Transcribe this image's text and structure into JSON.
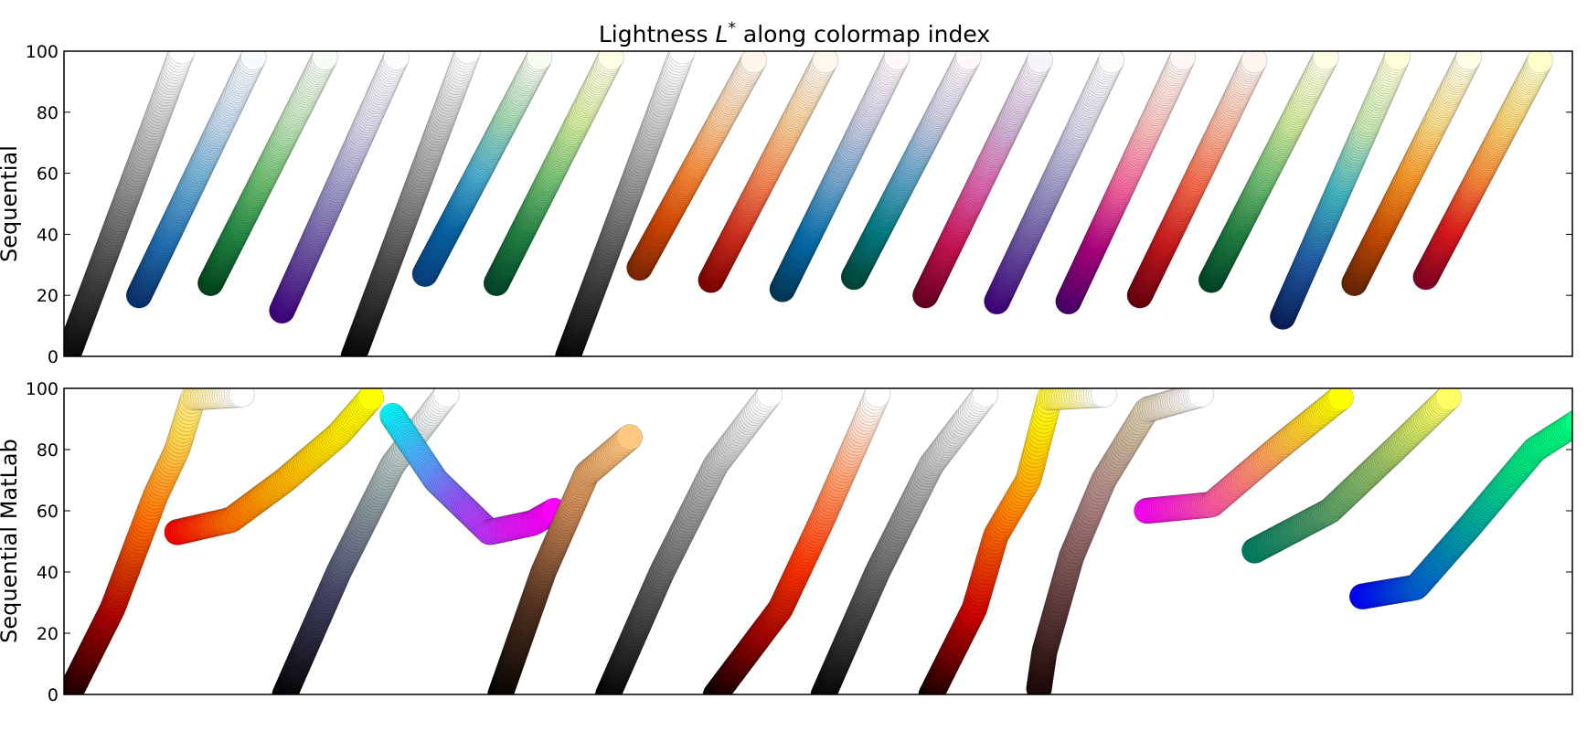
{
  "figure": {
    "title_prefix": "Lightness ",
    "title_symbol": "L",
    "title_sup": "*",
    "title_suffix": " along colormap index"
  },
  "chart_data": [
    {
      "type": "scatter",
      "ylabel": "Sequential",
      "ylim": [
        0,
        100
      ],
      "yticks": [
        "0",
        "20",
        "40",
        "60",
        "80",
        "100"
      ],
      "xticks_visible": false,
      "grid": false,
      "series": [
        {
          "x_start": 0.0,
          "x_end": 1.6,
          "L_start": 0,
          "L_end": 100,
          "curve": 1.0,
          "colors": [
            "#000000",
            "#4d4d4d",
            "#aaaaaa",
            "#ffffff"
          ]
        },
        {
          "x_start": 1.0,
          "x_end": 2.6,
          "L_start": 20,
          "L_end": 98,
          "curve": 1.0,
          "colors": [
            "#08306b",
            "#2171b5",
            "#6baed6",
            "#c6dbef",
            "#f7fbff"
          ]
        },
        {
          "x_start": 2.0,
          "x_end": 3.6,
          "L_start": 24,
          "L_end": 98,
          "curve": 1.0,
          "colors": [
            "#00441b",
            "#238b45",
            "#74c476",
            "#c7e9c0",
            "#f7fcf5"
          ]
        },
        {
          "x_start": 3.0,
          "x_end": 4.6,
          "L_start": 15,
          "L_end": 98,
          "curve": 1.0,
          "colors": [
            "#3f007d",
            "#6a51a3",
            "#9e9ac8",
            "#dadaeb",
            "#fcfbfd"
          ]
        },
        {
          "x_start": 4.0,
          "x_end": 5.6,
          "L_start": 0,
          "L_end": 100,
          "curve": 1.0,
          "colors": [
            "#000000",
            "#4d4d4d",
            "#aaaaaa",
            "#ffffff"
          ]
        },
        {
          "x_start": 5.0,
          "x_end": 6.6,
          "L_start": 27,
          "L_end": 98,
          "curve": 1.0,
          "colors": [
            "#084081",
            "#0868ac",
            "#4eb3d3",
            "#a8ddb5",
            "#f7fcf0"
          ]
        },
        {
          "x_start": 6.0,
          "x_end": 7.6,
          "L_start": 24,
          "L_end": 98,
          "curve": 1.0,
          "colors": [
            "#004529",
            "#238443",
            "#78c679",
            "#d9f0a3",
            "#ffffe5"
          ]
        },
        {
          "x_start": 7.0,
          "x_end": 8.6,
          "L_start": 0,
          "L_end": 100,
          "curve": 1.0,
          "colors": [
            "#000000",
            "#4d4d4d",
            "#aaaaaa",
            "#ffffff"
          ]
        },
        {
          "x_start": 8.0,
          "x_end": 9.6,
          "L_start": 29,
          "L_end": 97,
          "curve": 1.0,
          "colors": [
            "#7f2704",
            "#d94801",
            "#fd8d3c",
            "#fdd0a2",
            "#fff5eb"
          ]
        },
        {
          "x_start": 9.0,
          "x_end": 10.6,
          "L_start": 25,
          "L_end": 97,
          "curve": 1.0,
          "colors": [
            "#7f0000",
            "#d7301f",
            "#fc8d59",
            "#fdd49e",
            "#fff7ec"
          ]
        },
        {
          "x_start": 10.0,
          "x_end": 11.6,
          "L_start": 22,
          "L_end": 98,
          "curve": 1.0,
          "colors": [
            "#023858",
            "#0570b0",
            "#74a9cf",
            "#d0d1e6",
            "#fff7fb"
          ]
        },
        {
          "x_start": 11.0,
          "x_end": 12.6,
          "L_start": 26,
          "L_end": 98,
          "curve": 1.0,
          "colors": [
            "#014636",
            "#02818a",
            "#67a9cf",
            "#d0d1e6",
            "#fff7fb"
          ]
        },
        {
          "x_start": 12.0,
          "x_end": 13.6,
          "L_start": 20,
          "L_end": 97,
          "curve": 1.0,
          "colors": [
            "#67001f",
            "#ce1256",
            "#df65b0",
            "#d4b9da",
            "#f7f4f9"
          ]
        },
        {
          "x_start": 13.0,
          "x_end": 14.6,
          "L_start": 18,
          "L_end": 97,
          "curve": 1.0,
          "colors": [
            "#3f007d",
            "#6a51a3",
            "#9e9ac8",
            "#dadaeb",
            "#fcfbfd"
          ]
        },
        {
          "x_start": 14.0,
          "x_end": 15.6,
          "L_start": 18,
          "L_end": 98,
          "curve": 1.0,
          "colors": [
            "#49006a",
            "#ae017e",
            "#f768a1",
            "#fcc5c0",
            "#fff7f3"
          ]
        },
        {
          "x_start": 15.0,
          "x_end": 16.6,
          "L_start": 20,
          "L_end": 97,
          "curve": 1.0,
          "colors": [
            "#67000d",
            "#cb181d",
            "#fb6a4a",
            "#fcbba1",
            "#fff5f0"
          ]
        },
        {
          "x_start": 16.0,
          "x_end": 17.6,
          "L_start": 25,
          "L_end": 98,
          "curve": 1.0,
          "colors": [
            "#004529",
            "#238443",
            "#78c679",
            "#d9f0a3",
            "#ffffe5"
          ]
        },
        {
          "x_start": 17.0,
          "x_end": 18.6,
          "L_start": 13,
          "L_end": 98,
          "curve": 1.0,
          "colors": [
            "#081d58",
            "#225ea8",
            "#41b6c4",
            "#c7e9b4",
            "#ffffd9"
          ]
        },
        {
          "x_start": 18.0,
          "x_end": 19.6,
          "L_start": 24,
          "L_end": 98,
          "curve": 1.0,
          "colors": [
            "#662506",
            "#cc4c02",
            "#fe9929",
            "#fee391",
            "#ffffe5"
          ]
        },
        {
          "x_start": 19.0,
          "x_end": 20.6,
          "L_start": 26,
          "L_end": 97,
          "curve": 1.0,
          "colors": [
            "#800026",
            "#e31a1c",
            "#fd8d3c",
            "#fed976",
            "#ffffcc"
          ]
        }
      ]
    },
    {
      "type": "scatter",
      "ylabel": "Sequential MatLab",
      "ylim": [
        0,
        100
      ],
      "yticks": [
        "0",
        "20",
        "40",
        "60",
        "80",
        "100"
      ],
      "xticks_visible": false,
      "grid": false,
      "series": [
        {
          "points": [
            [
              0.0,
              0
            ],
            [
              0.4,
              28
            ],
            [
              0.8,
              65
            ],
            [
              1.0,
              80
            ],
            [
              1.15,
              97
            ],
            [
              1.6,
              98
            ]
          ],
          "colors": [
            "#0b0000",
            "#aa0000",
            "#ff6a00",
            "#ffdd55",
            "#ffffff"
          ]
        },
        {
          "points": [
            [
              1.0,
              53
            ],
            [
              1.5,
              57
            ],
            [
              2.0,
              70
            ],
            [
              2.5,
              85
            ],
            [
              2.8,
              97
            ]
          ],
          "colors": [
            "#ff0000",
            "#ff6600",
            "#ffaa00",
            "#ffdd00",
            "#ffff00"
          ]
        },
        {
          "points": [
            [
              2.0,
              0
            ],
            [
              2.5,
              40
            ],
            [
              3.0,
              75
            ],
            [
              3.5,
              98
            ]
          ],
          "colors": [
            "#000000",
            "#444466",
            "#99aaaa",
            "#ffffff"
          ]
        },
        {
          "points": [
            [
              3.0,
              91
            ],
            [
              3.4,
              70
            ],
            [
              3.9,
              53
            ],
            [
              4.3,
              56
            ],
            [
              4.5,
              60
            ]
          ],
          "colors": [
            "#00ffff",
            "#55aaff",
            "#9955ff",
            "#dd22ff",
            "#ff00ff"
          ]
        },
        {
          "points": [
            [
              4.0,
              0
            ],
            [
              4.4,
              40
            ],
            [
              4.8,
              72
            ],
            [
              5.2,
              84
            ]
          ],
          "colors": [
            "#000000",
            "#553322",
            "#cc8855",
            "#ffc77f"
          ]
        },
        {
          "points": [
            [
              5.0,
              0
            ],
            [
              5.5,
              40
            ],
            [
              6.0,
              75
            ],
            [
              6.5,
              98
            ]
          ],
          "colors": [
            "#000000",
            "#555555",
            "#aaaaaa",
            "#ffffff"
          ]
        },
        {
          "points": [
            [
              6.0,
              0
            ],
            [
              6.6,
              28
            ],
            [
              7.0,
              58
            ],
            [
              7.5,
              98
            ]
          ],
          "colors": [
            "#000000",
            "#990000",
            "#ff3300",
            "#ff9966",
            "#ffffff"
          ]
        },
        {
          "points": [
            [
              7.0,
              0
            ],
            [
              7.5,
              40
            ],
            [
              8.0,
              75
            ],
            [
              8.5,
              98
            ]
          ],
          "colors": [
            "#000000",
            "#555555",
            "#aaaaaa",
            "#ffffff"
          ]
        },
        {
          "points": [
            [
              8.0,
              0
            ],
            [
              8.4,
              28
            ],
            [
              8.6,
              52
            ],
            [
              8.9,
              70
            ],
            [
              9.1,
              97
            ],
            [
              9.6,
              98
            ]
          ],
          "colors": [
            "#0b0000",
            "#cc0000",
            "#ff7700",
            "#ffee00",
            "#ffffff"
          ]
        },
        {
          "points": [
            [
              9.0,
              2
            ],
            [
              9.05,
              14
            ],
            [
              9.3,
              45
            ],
            [
              9.6,
              70
            ],
            [
              10.0,
              93
            ],
            [
              10.5,
              98
            ]
          ],
          "colors": [
            "#1a0505",
            "#664040",
            "#aa8080",
            "#d0c0a0",
            "#ffffff"
          ]
        },
        {
          "points": [
            [
              10.0,
              60
            ],
            [
              10.6,
              62
            ],
            [
              11.2,
              80
            ],
            [
              11.8,
              97
            ]
          ],
          "colors": [
            "#ff00ff",
            "#ff55aa",
            "#ffaa55",
            "#ffff00"
          ]
        },
        {
          "points": [
            [
              11.0,
              47
            ],
            [
              11.7,
              60
            ],
            [
              12.3,
              80
            ],
            [
              12.8,
              97
            ]
          ],
          "colors": [
            "#008066",
            "#4d9966",
            "#99c266",
            "#ffff66"
          ]
        },
        {
          "points": [
            [
              12.0,
              32
            ],
            [
              12.5,
              35
            ],
            [
              13.0,
              55
            ],
            [
              13.6,
              80
            ],
            [
              14.0,
              89
            ]
          ],
          "colors": [
            "#0000ff",
            "#0060d0",
            "#00a0a0",
            "#00e080",
            "#00ff80"
          ]
        }
      ]
    }
  ]
}
